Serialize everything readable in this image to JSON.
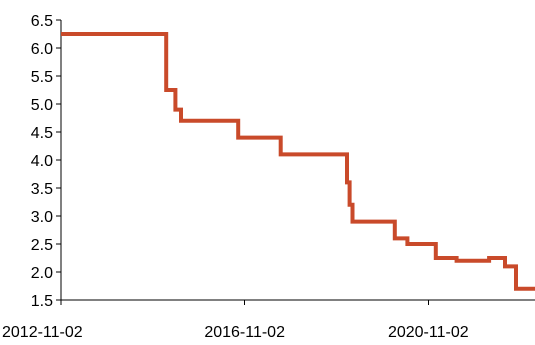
{
  "chart_data": {
    "type": "line",
    "step": true,
    "title": "",
    "xlabel": "",
    "ylabel": "",
    "xlim": [
      "2012-11-02",
      "2023-03-01"
    ],
    "ylim": [
      1.5,
      6.5
    ],
    "x_ticks": [
      "2012-11-02",
      "2016-11-02",
      "2020-11-02"
    ],
    "y_ticks": [
      "1.5",
      "2.0",
      "2.5",
      "3.0",
      "3.5",
      "4.0",
      "4.5",
      "5.0",
      "5.5",
      "6.0",
      "6.5"
    ],
    "grid": false,
    "legend": "none",
    "series": [
      {
        "color": "#c94a2a",
        "points": [
          {
            "x": "2012-11-02",
            "y": 6.25
          },
          {
            "x": "2015-01-12",
            "y": 6.25
          },
          {
            "x": "2015-02-17",
            "y": 5.25
          },
          {
            "x": "2015-05-01",
            "y": 4.9
          },
          {
            "x": "2015-06-15",
            "y": 4.7
          },
          {
            "x": "2016-09-06",
            "y": 4.7
          },
          {
            "x": "2016-09-12",
            "y": 4.4
          },
          {
            "x": "2017-08-16",
            "y": 4.1
          },
          {
            "x": "2019-01-10",
            "y": 4.1
          },
          {
            "x": "2019-01-25",
            "y": 3.6
          },
          {
            "x": "2019-02-15",
            "y": 3.2
          },
          {
            "x": "2019-03-10",
            "y": 2.9
          },
          {
            "x": "2020-02-10",
            "y": 2.6
          },
          {
            "x": "2020-05-20",
            "y": 2.5
          },
          {
            "x": "2021-01-01",
            "y": 2.25
          },
          {
            "x": "2021-06-15",
            "y": 2.2
          },
          {
            "x": "2022-03-01",
            "y": 2.25
          },
          {
            "x": "2022-07-05",
            "y": 2.1
          },
          {
            "x": "2022-10-01",
            "y": 1.7
          },
          {
            "x": "2023-03-01",
            "y": 1.7
          }
        ]
      }
    ]
  }
}
